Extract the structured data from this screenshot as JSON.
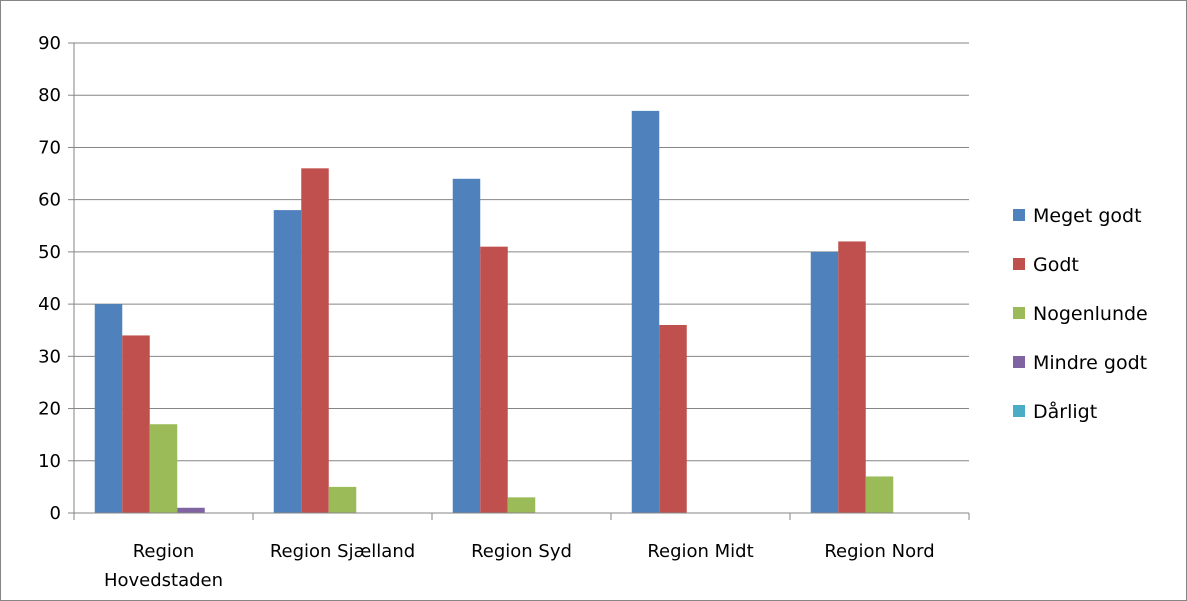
{
  "chart_data": {
    "type": "bar",
    "categories": [
      [
        "Region",
        "Hovedstaden"
      ],
      [
        "Region Sjælland"
      ],
      [
        "Region Syd"
      ],
      [
        "Region Midt"
      ],
      [
        "Region Nord"
      ]
    ],
    "series": [
      {
        "name": "Meget godt",
        "color": "#4F81BD",
        "values": [
          40,
          58,
          64,
          77,
          50
        ]
      },
      {
        "name": "Godt",
        "color": "#C0504D",
        "values": [
          34,
          66,
          51,
          36,
          52
        ]
      },
      {
        "name": "Nogenlunde",
        "color": "#9BBB59",
        "values": [
          17,
          5,
          3,
          0,
          7
        ]
      },
      {
        "name": "Mindre godt",
        "color": "#8064A2",
        "values": [
          1,
          0,
          0,
          0,
          0
        ]
      },
      {
        "name": "Dårligt",
        "color": "#4BACC6",
        "values": [
          0,
          0,
          0,
          0,
          0
        ]
      }
    ],
    "ylim": [
      0,
      90
    ],
    "yticks": [
      0,
      10,
      20,
      30,
      40,
      50,
      60,
      70,
      80,
      90
    ],
    "grid": true,
    "legend": "right",
    "title": "",
    "xlabel": "",
    "ylabel": ""
  }
}
